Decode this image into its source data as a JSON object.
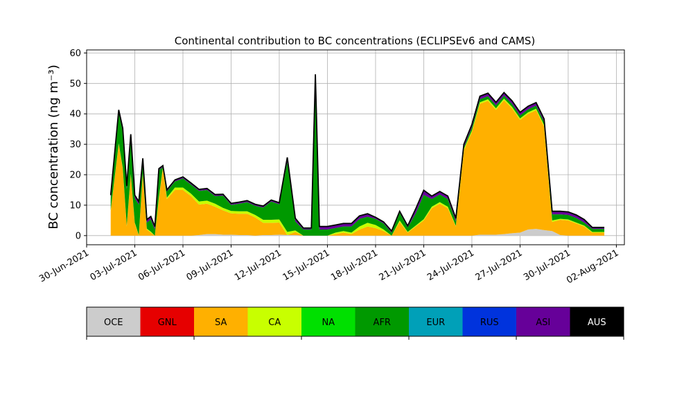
{
  "chart_data": {
    "type": "area",
    "title": "Continental contribution to BC concentrations (ECLIPSEv6 and CAMS)",
    "ylabel": "BC concentration (ng m⁻³)",
    "xlabel": "",
    "ylim": [
      -3,
      61
    ],
    "xlim": [
      "2021-06-30T00:00",
      "2021-08-02T12:00"
    ],
    "yticks": [
      0,
      10,
      20,
      30,
      40,
      50,
      60
    ],
    "xticks": [
      "2021-06-30",
      "2021-07-03",
      "2021-07-06",
      "2021-07-09",
      "2021-07-12",
      "2021-07-15",
      "2021-07-18",
      "2021-07-21",
      "2021-07-24",
      "2021-07-27",
      "2021-07-30",
      "2021-08-02"
    ],
    "xtick_labels": [
      "30-Jun-2021",
      "03-Jul-2021",
      "06-Jul-2021",
      "09-Jul-2021",
      "12-Jul-2021",
      "15-Jul-2021",
      "18-Jul-2021",
      "21-Jul-2021",
      "24-Jul-2021",
      "27-Jul-2021",
      "30-Jul-2021",
      "02-Aug-2021"
    ],
    "grid": true,
    "series_order": [
      "OCE",
      "SA",
      "CA",
      "AFR",
      "ASI"
    ],
    "x": [
      "2021-07-01T12:00",
      "2021-07-02T00:00",
      "2021-07-02T06:00",
      "2021-07-02T12:00",
      "2021-07-02T18:00",
      "2021-07-03T00:00",
      "2021-07-03T06:00",
      "2021-07-03T12:00",
      "2021-07-03T18:00",
      "2021-07-04T00:00",
      "2021-07-04T06:00",
      "2021-07-04T12:00",
      "2021-07-04T18:00",
      "2021-07-05T00:00",
      "2021-07-05T12:00",
      "2021-07-06T00:00",
      "2021-07-06T12:00",
      "2021-07-07T00:00",
      "2021-07-07T12:00",
      "2021-07-08T00:00",
      "2021-07-08T12:00",
      "2021-07-09T00:00",
      "2021-07-09T12:00",
      "2021-07-10T00:00",
      "2021-07-10T12:00",
      "2021-07-11T00:00",
      "2021-07-11T12:00",
      "2021-07-12T00:00",
      "2021-07-12T12:00",
      "2021-07-13T00:00",
      "2021-07-13T12:00",
      "2021-07-14T00:00",
      "2021-07-14T06:00",
      "2021-07-14T12:00",
      "2021-07-14T18:00",
      "2021-07-15T00:00",
      "2021-07-15T12:00",
      "2021-07-16T00:00",
      "2021-07-16T12:00",
      "2021-07-17T00:00",
      "2021-07-17T12:00",
      "2021-07-18T00:00",
      "2021-07-18T12:00",
      "2021-07-19T00:00",
      "2021-07-19T12:00",
      "2021-07-20T00:00",
      "2021-07-20T12:00",
      "2021-07-21T00:00",
      "2021-07-21T12:00",
      "2021-07-22T00:00",
      "2021-07-22T12:00",
      "2021-07-23T00:00",
      "2021-07-23T12:00",
      "2021-07-24T00:00",
      "2021-07-24T12:00",
      "2021-07-25T00:00",
      "2021-07-25T12:00",
      "2021-07-26T00:00",
      "2021-07-26T12:00",
      "2021-07-27T00:00",
      "2021-07-27T12:00",
      "2021-07-28T00:00",
      "2021-07-28T12:00",
      "2021-07-29T00:00",
      "2021-07-29T12:00",
      "2021-07-30T00:00",
      "2021-07-30T12:00",
      "2021-07-31T00:00",
      "2021-07-31T12:00",
      "2021-08-01T00:00",
      "2021-08-01T06:00"
    ],
    "series": [
      {
        "name": "OCE",
        "color": "#cccccc",
        "values": [
          0,
          0,
          0,
          0,
          0,
          0,
          0,
          0,
          0,
          0,
          0,
          0,
          0,
          0,
          0,
          0,
          0,
          0.2,
          0.5,
          0.5,
          0.3,
          0.3,
          0.2,
          0.2,
          0,
          0.2,
          0.2,
          0.3,
          0.2,
          0.2,
          0,
          0,
          0,
          0,
          0,
          0,
          0,
          0,
          0,
          0,
          0,
          0,
          0,
          0,
          0,
          0,
          0,
          0,
          0,
          0,
          0,
          0,
          0,
          0,
          0.3,
          0.3,
          0.3,
          0.5,
          0.8,
          1.0,
          2.0,
          2.2,
          1.8,
          1.5,
          0.2,
          0,
          0,
          0,
          0,
          0,
          0
        ]
      },
      {
        "name": "SA",
        "color": "#ffb000",
        "values": [
          8,
          30,
          22,
          3,
          20,
          4,
          0,
          20,
          2,
          1,
          0,
          12,
          22,
          12,
          15,
          15,
          13,
          10,
          10,
          9,
          8,
          7,
          7,
          7,
          6,
          4,
          4,
          4,
          0,
          1,
          0,
          0,
          0,
          0,
          0,
          0,
          0.5,
          1,
          0.5,
          2,
          3,
          2.5,
          1.5,
          0,
          4.5,
          1,
          3,
          5,
          9,
          10.5,
          9,
          3,
          28,
          34,
          43,
          44,
          41,
          44,
          41,
          37,
          38,
          39,
          34,
          3,
          5,
          5,
          4,
          3,
          1,
          1,
          1
        ]
      },
      {
        "name": "CA",
        "color": "#c8ff00",
        "values": [
          0.3,
          0.3,
          0.3,
          0.3,
          0.3,
          0.3,
          0.2,
          0.4,
          0.3,
          0.3,
          0,
          0.5,
          0.5,
          0.5,
          0.8,
          0.8,
          0.8,
          1,
          1,
          1,
          0.8,
          0.8,
          0.8,
          0.8,
          0.8,
          1,
          1,
          1,
          1,
          0.5,
          0,
          0,
          0,
          0,
          0,
          0,
          0.5,
          0.5,
          0.5,
          1,
          1.2,
          1,
          0.5,
          0,
          0.5,
          0.2,
          0.3,
          0.4,
          0.5,
          0.5,
          0.5,
          0.2,
          0.5,
          0.5,
          0.5,
          0.5,
          0.5,
          0.5,
          0.5,
          0.5,
          0.5,
          0.5,
          0.5,
          0.5,
          0.3,
          0.3,
          0.3,
          0.3,
          0.2,
          0.2,
          0.2
        ]
      },
      {
        "name": "AFR",
        "color": "#009900",
        "values": [
          4,
          10,
          12,
          12,
          12,
          8,
          10,
          4,
          2,
          4,
          2,
          9,
          0,
          2,
          2,
          3,
          3,
          3.5,
          3.5,
          2.5,
          4,
          2,
          2.5,
          3,
          3,
          4,
          6,
          5,
          23,
          3,
          2,
          2,
          50,
          2,
          2,
          2,
          1.5,
          1.5,
          2,
          2.5,
          2,
          2,
          2,
          1,
          2.5,
          1.5,
          4,
          8,
          2.5,
          2.5,
          2.5,
          1.5,
          0.5,
          1,
          1,
          1,
          1,
          1,
          1,
          1,
          1,
          1,
          1,
          2,
          1.5,
          1.5,
          1.5,
          1,
          1,
          1,
          1
        ]
      },
      {
        "name": "ASI",
        "color": "#660099",
        "values": [
          1,
          1,
          1,
          1,
          1,
          1,
          1,
          1,
          1,
          1,
          1,
          0.5,
          0.5,
          0.5,
          0.5,
          0.5,
          0.5,
          0.5,
          0.5,
          0.5,
          0.5,
          0.5,
          0.5,
          0.5,
          0.5,
          0.5,
          0.5,
          0.5,
          1.5,
          1,
          0.5,
          0.5,
          3,
          1,
          1,
          1,
          1,
          1,
          1,
          1,
          1,
          0.5,
          0.5,
          0.5,
          0.5,
          0.5,
          1.5,
          1.5,
          1,
          1,
          1,
          1,
          1,
          1,
          1,
          1,
          1,
          1,
          1,
          1,
          1,
          1,
          1,
          1,
          1,
          1,
          1,
          1,
          0.5,
          0.5,
          0.5
        ]
      }
    ],
    "colorbar": [
      {
        "label": "OCE",
        "color": "#cccccc"
      },
      {
        "label": "GNL",
        "color": "#e60000"
      },
      {
        "label": "SA",
        "color": "#ffb000"
      },
      {
        "label": "CA",
        "color": "#c8ff00"
      },
      {
        "label": "NA",
        "color": "#00e000"
      },
      {
        "label": "AFR",
        "color": "#009900"
      },
      {
        "label": "EUR",
        "color": "#00a0b8"
      },
      {
        "label": "RUS",
        "color": "#0033dd"
      },
      {
        "label": "ASI",
        "color": "#660099"
      },
      {
        "label": "AUS",
        "color": "#000000"
      }
    ]
  }
}
